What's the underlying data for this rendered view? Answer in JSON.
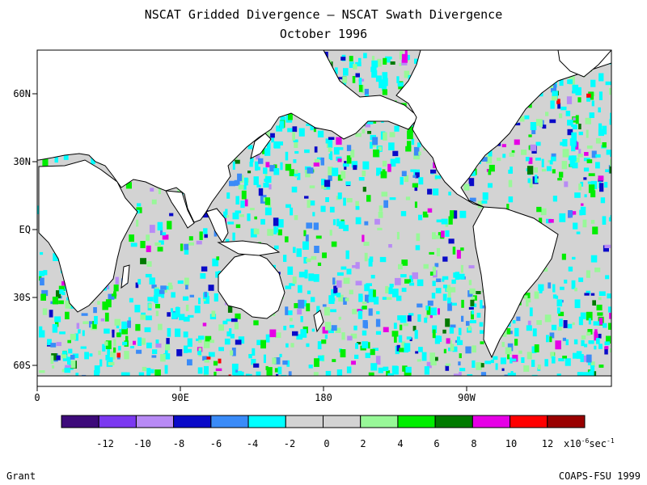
{
  "header": {
    "title": "NSCAT Gridded Divergence – NSCAT Swath Divergence",
    "subtitle": "October 1996"
  },
  "map": {
    "lat_labels": [
      "60N",
      "30N",
      "EQ",
      "30S",
      "60S"
    ],
    "lon_labels": [
      "0",
      "90E",
      "180",
      "90W"
    ],
    "land_color": "#ffffff",
    "ocean_base_color": "#d3d3d3"
  },
  "colorbar": {
    "colors": [
      "#3d0a7a",
      "#7b38f0",
      "#b88af5",
      "#0a0ac8",
      "#3a8bf8",
      "#00ffff",
      "#d3d3d3",
      "#d3d3d3",
      "#98f898",
      "#00ee00",
      "#007a00",
      "#e600e6",
      "#ff0000",
      "#990000"
    ],
    "tick_labels": [
      "-12",
      "-10",
      "-8",
      "-6",
      "-4",
      "-2",
      "0",
      "2",
      "4",
      "6",
      "8",
      "10",
      "12"
    ],
    "units_base": "x10",
    "units_exp": "-6",
    "units_rest": "sec",
    "units_exp2": "-1"
  },
  "footer": {
    "left": "Grant",
    "right": "COAPS-FSU 1999"
  }
}
